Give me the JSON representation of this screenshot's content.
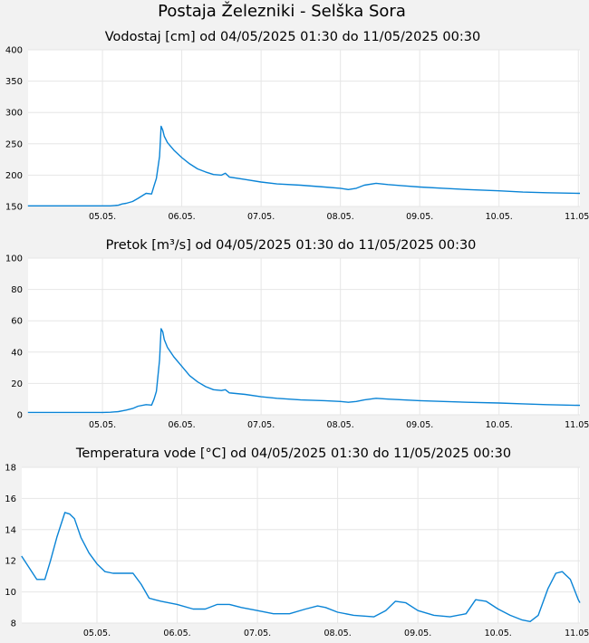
{
  "station_title": "Postaja Železniki - Selška Sora",
  "colors": {
    "line": "#0a84d6",
    "plot_bg": "#ffffff",
    "page_bg": "#f2f2f2",
    "grid": "#e6e6e6"
  },
  "chart_data": [
    {
      "type": "line",
      "title": "Vodostaj [cm] od 04/05/2025 01:30 do 11/05/2025 00:30",
      "xlabel": "",
      "ylabel": "",
      "ylim": [
        150,
        400
      ],
      "yticks": [
        "150",
        "200",
        "250",
        "300",
        "350",
        "400"
      ],
      "xticks": [
        "05.05.",
        "06.05.",
        "07.05.",
        "08.05.",
        "09.05.",
        "10.05.",
        "11.05."
      ],
      "x_unit": "day of May 2025 (tick n = 0:00 on day n)",
      "grid": true,
      "series": [
        {
          "x": [
            4.06,
            4.5,
            4.9,
            5.0,
            5.1,
            5.2,
            5.25,
            5.3,
            5.38,
            5.45,
            5.55,
            5.62,
            5.65,
            5.68,
            5.72,
            5.74,
            5.76,
            5.78,
            5.82,
            5.9,
            6.0,
            6.1,
            6.2,
            6.3,
            6.4,
            6.5,
            6.55,
            6.6,
            6.8,
            7.0,
            7.2,
            7.5,
            7.8,
            8.0,
            8.1,
            8.2,
            8.3,
            8.45,
            8.6,
            8.8,
            9.0,
            9.3,
            9.6,
            10.0,
            10.3,
            10.6,
            11.02
          ],
          "y": [
            151,
            151,
            151,
            151,
            151,
            152,
            154,
            155,
            158,
            163,
            171,
            170,
            183,
            195,
            230,
            278,
            272,
            262,
            252,
            240,
            228,
            218,
            210,
            205,
            201,
            200,
            203,
            197,
            193,
            189,
            186,
            184,
            181,
            179,
            177,
            179,
            184,
            187,
            185,
            183,
            181,
            179,
            177,
            175,
            173,
            172,
            171
          ]
        }
      ]
    },
    {
      "type": "line",
      "title": "Pretok [m³/s] od 04/05/2025 01:30 do 11/05/2025 00:30",
      "xlabel": "",
      "ylabel": "",
      "ylim": [
        0,
        100
      ],
      "yticks": [
        "0",
        "20",
        "40",
        "60",
        "80",
        "100"
      ],
      "xticks": [
        "05.05.",
        "06.05.",
        "07.05.",
        "08.05.",
        "09.05.",
        "10.05.",
        "11.05."
      ],
      "x_unit": "day of May 2025 (tick n = 0:00 on day n)",
      "grid": true,
      "series": [
        {
          "x": [
            4.06,
            4.5,
            4.9,
            5.0,
            5.1,
            5.2,
            5.25,
            5.3,
            5.38,
            5.45,
            5.55,
            5.62,
            5.65,
            5.68,
            5.72,
            5.74,
            5.76,
            5.78,
            5.82,
            5.9,
            6.0,
            6.1,
            6.2,
            6.3,
            6.4,
            6.5,
            6.55,
            6.6,
            6.8,
            7.0,
            7.2,
            7.5,
            7.8,
            8.0,
            8.1,
            8.2,
            8.3,
            8.45,
            8.6,
            8.8,
            9.0,
            9.3,
            9.6,
            10.0,
            10.3,
            10.6,
            11.02
          ],
          "y": [
            1.5,
            1.5,
            1.5,
            1.5,
            1.6,
            2,
            2.5,
            3,
            4,
            5.5,
            6.5,
            6.2,
            10,
            15,
            35,
            55,
            53,
            48,
            43,
            37,
            31,
            25,
            21,
            18,
            16,
            15.5,
            16,
            14,
            13,
            11.5,
            10.5,
            9.5,
            9,
            8.5,
            8,
            8.5,
            9.5,
            10.5,
            10,
            9.5,
            9,
            8.5,
            8,
            7.5,
            7,
            6.5,
            6
          ]
        }
      ]
    },
    {
      "type": "line",
      "title": "Temperatura vode [°C] od 04/05/2025 01:30 do 11/05/2025 00:30",
      "xlabel": "",
      "ylabel": "",
      "ylim": [
        8,
        18
      ],
      "yticks": [
        "8",
        "10",
        "12",
        "14",
        "16",
        "18"
      ],
      "xticks": [
        "05.05.",
        "06.05.",
        "07.05.",
        "08.05.",
        "09.05.",
        "10.05.",
        "11.05."
      ],
      "x_unit": "day of May 2025 (tick n = 0:00 on day n)",
      "grid": true,
      "series": [
        {
          "x": [
            4.06,
            4.15,
            4.25,
            4.35,
            4.42,
            4.5,
            4.6,
            4.66,
            4.72,
            4.8,
            4.9,
            5.0,
            5.1,
            5.2,
            5.3,
            5.45,
            5.55,
            5.65,
            5.72,
            5.8,
            6.0,
            6.2,
            6.35,
            6.5,
            6.65,
            6.8,
            7.0,
            7.2,
            7.4,
            7.6,
            7.75,
            7.85,
            8.0,
            8.2,
            8.45,
            8.6,
            8.72,
            8.85,
            9.0,
            9.2,
            9.4,
            9.6,
            9.72,
            9.85,
            10.0,
            10.15,
            10.3,
            10.4,
            10.5,
            10.62,
            10.72,
            10.8,
            10.9,
            11.0,
            11.02
          ],
          "y": [
            12.3,
            11.6,
            10.8,
            10.8,
            12.0,
            13.5,
            15.1,
            15.0,
            14.7,
            13.5,
            12.5,
            11.8,
            11.3,
            11.2,
            11.2,
            11.2,
            10.5,
            9.6,
            9.5,
            9.4,
            9.2,
            8.9,
            8.9,
            9.2,
            9.2,
            9.0,
            8.8,
            8.6,
            8.6,
            8.9,
            9.1,
            9.0,
            8.7,
            8.5,
            8.4,
            8.8,
            9.4,
            9.3,
            8.8,
            8.5,
            8.4,
            8.6,
            9.5,
            9.4,
            8.9,
            8.5,
            8.2,
            8.1,
            8.5,
            10.2,
            11.2,
            11.3,
            10.8,
            9.5,
            9.3
          ]
        }
      ]
    }
  ]
}
